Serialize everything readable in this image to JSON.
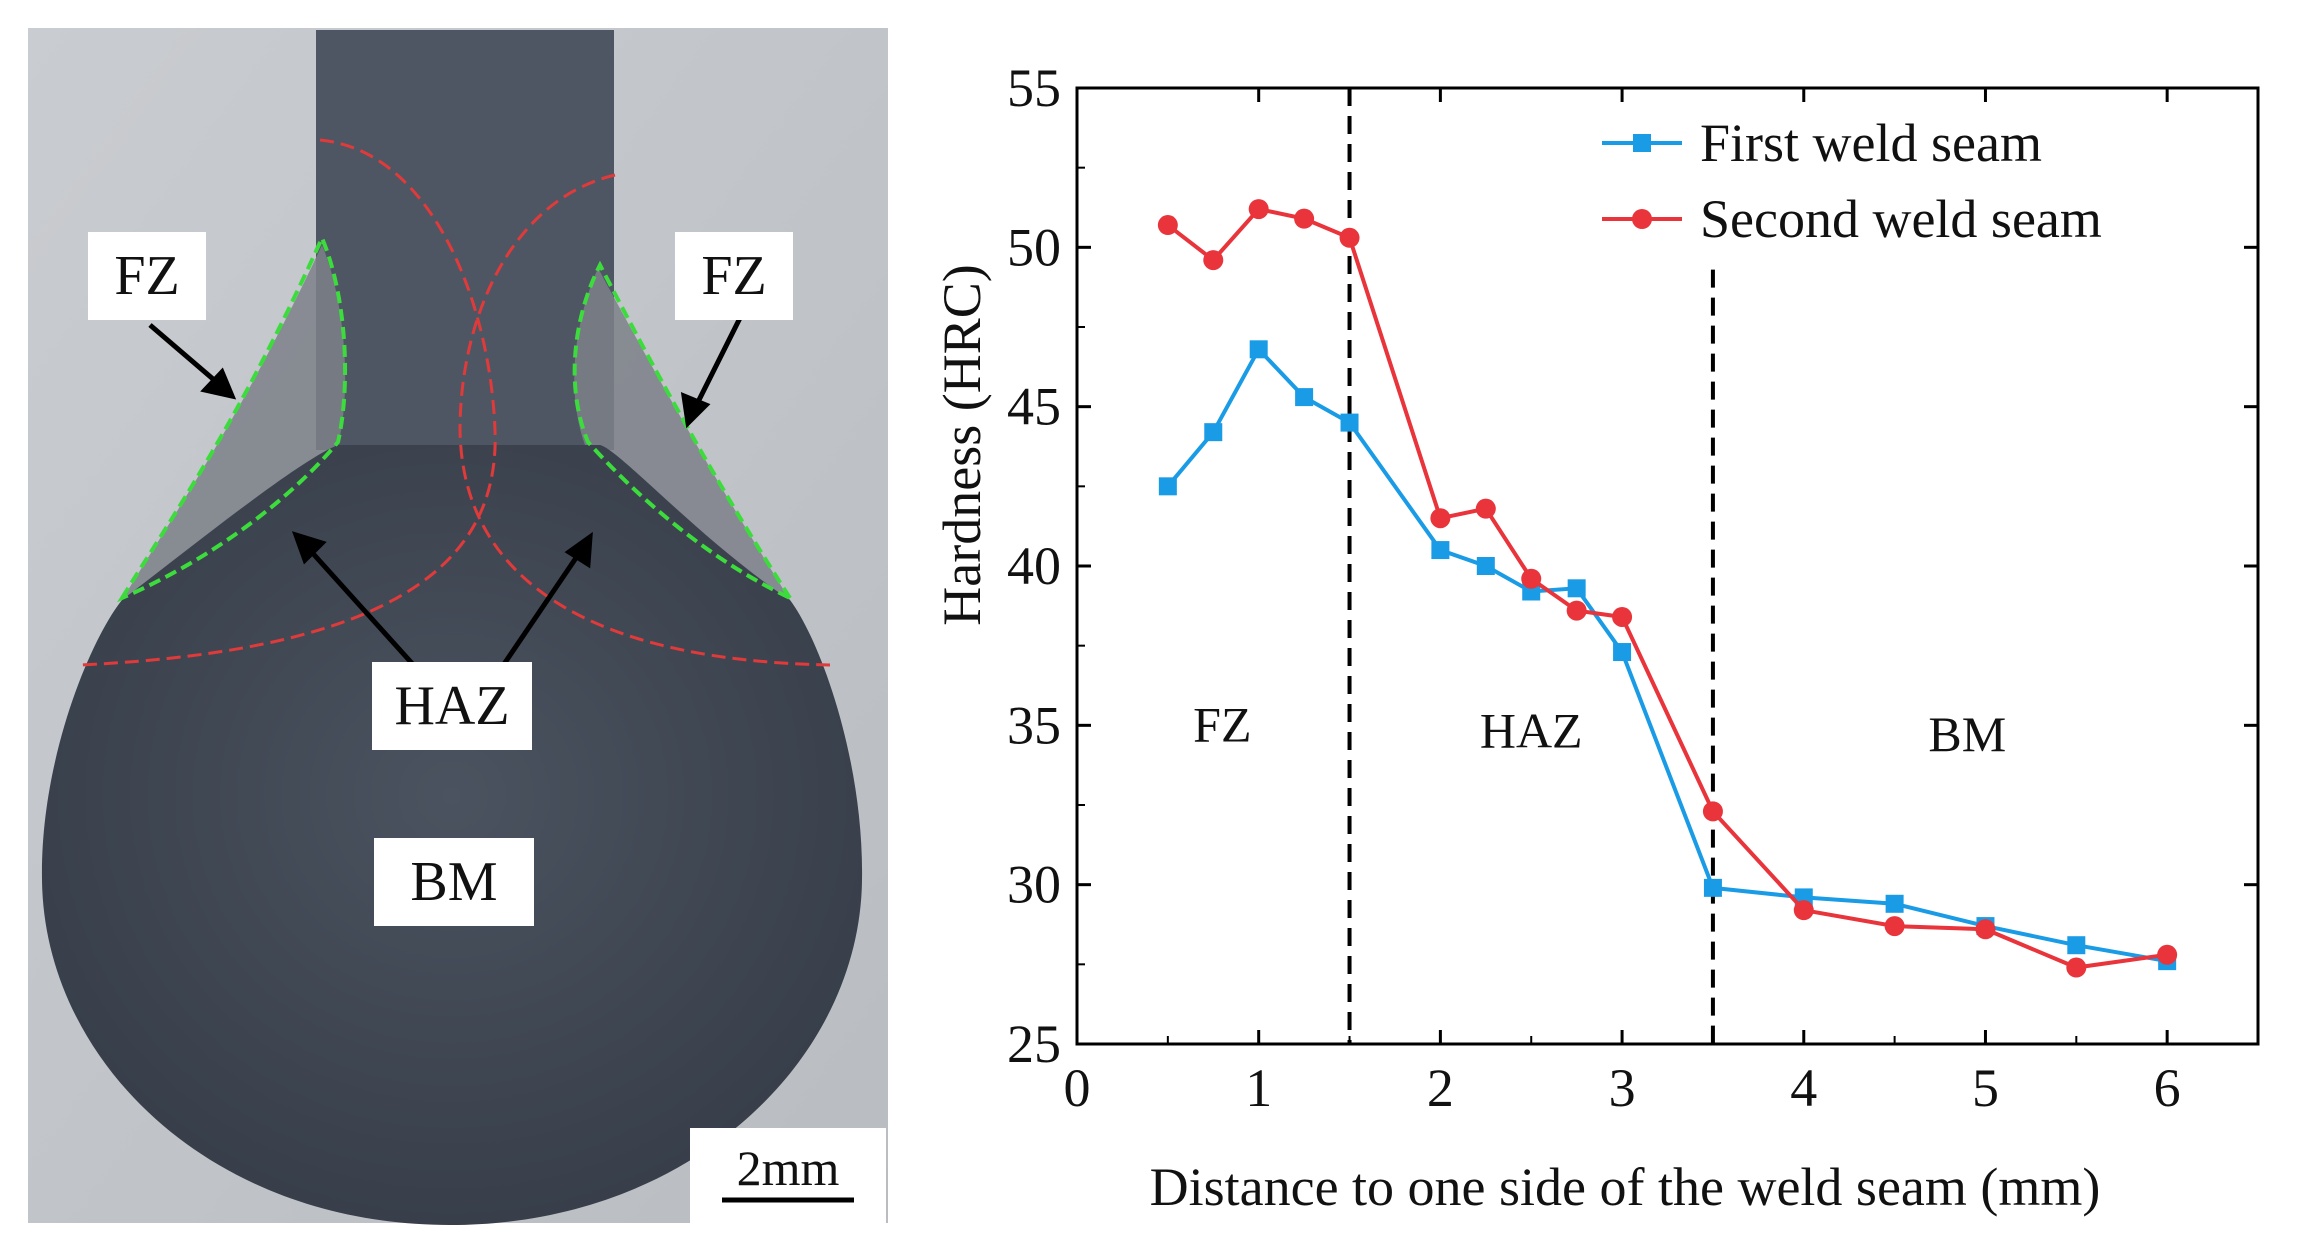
{
  "photo": {
    "labels": {
      "fz_left": "FZ",
      "fz_right": "FZ",
      "haz": "HAZ",
      "bm": "BM"
    },
    "scale_bar": "2mm",
    "colors": {
      "background": "#c6c9cc",
      "metal": "#434b57",
      "fz_outline": "#3ddc3d",
      "haz_outline": "#e03a3a"
    }
  },
  "chart_data": {
    "type": "line",
    "title": "",
    "xlabel": "Distance to one side of the weld seam (mm)",
    "ylabel": "Hardness (HRC)",
    "xlim": [
      0,
      6.5
    ],
    "ylim": [
      25,
      55
    ],
    "xticks": [
      0,
      1,
      2,
      3,
      4,
      5,
      6
    ],
    "yticks": [
      25,
      30,
      35,
      40,
      45,
      50,
      55
    ],
    "legend_position": "top-right",
    "series": [
      {
        "name": "First weld seam",
        "color": "#1a9be6",
        "marker": "square",
        "x": [
          0.5,
          0.75,
          1.0,
          1.25,
          1.5,
          2.0,
          2.25,
          2.5,
          2.75,
          3.0,
          3.5,
          4.0,
          4.5,
          5.0,
          5.5,
          6.0
        ],
        "values": [
          42.5,
          44.2,
          46.8,
          45.3,
          44.5,
          40.5,
          40.0,
          39.2,
          39.3,
          37.3,
          29.9,
          29.6,
          29.4,
          28.7,
          28.1,
          27.6
        ]
      },
      {
        "name": "Second weld seam",
        "color": "#e8343a",
        "marker": "circle",
        "x": [
          0.5,
          0.75,
          1.0,
          1.25,
          1.5,
          2.0,
          2.25,
          2.5,
          2.75,
          3.0,
          3.5,
          4.0,
          4.5,
          5.0,
          5.5,
          6.0
        ],
        "values": [
          50.7,
          49.6,
          51.2,
          50.9,
          50.3,
          41.5,
          41.8,
          39.6,
          38.6,
          38.4,
          32.3,
          29.2,
          28.7,
          28.6,
          27.4,
          27.8
        ]
      }
    ],
    "vlines": [
      1.5,
      3.5
    ],
    "annotations": [
      {
        "text": "FZ",
        "x": 0.8,
        "y": 35
      },
      {
        "text": "HAZ",
        "x": 2.5,
        "y": 34.8
      },
      {
        "text": "BM",
        "x": 4.9,
        "y": 34.7
      }
    ]
  }
}
